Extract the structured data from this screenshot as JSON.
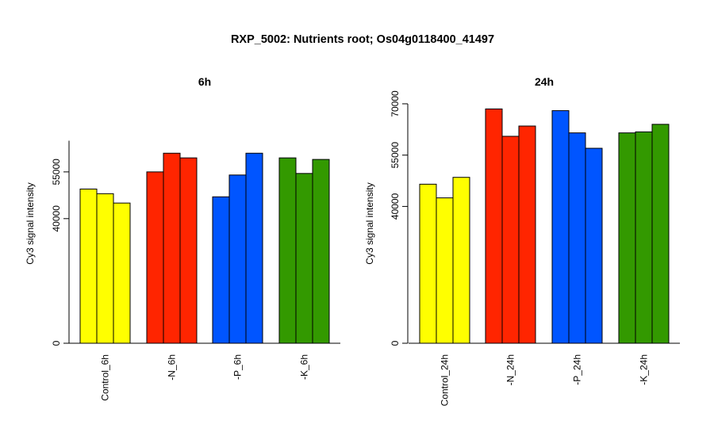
{
  "title": "RXP_5002: Nutrients root; Os04g0118400_41497",
  "colors": {
    "control": "#ffff00",
    "n": "#ff2500",
    "p": "#0055ff",
    "k": "#339900"
  },
  "chart_data": [
    {
      "type": "bar",
      "title": "6h",
      "ylabel": "Cy3 signal intensity",
      "xlabel": "",
      "ylim": [
        0,
        65000
      ],
      "yticks": [
        {
          "value": 0,
          "label": "0"
        },
        {
          "value": 40000,
          "label": "40000"
        },
        {
          "value": 55000,
          "label": "55000"
        }
      ],
      "grid": false,
      "categories": [
        "Control_6h",
        "-N_6h",
        "-P_6h",
        "-K_6h"
      ],
      "groups": [
        {
          "label": "Control_6h",
          "color": "#ffff00",
          "values": [
            49500,
            48000,
            45000
          ]
        },
        {
          "label": "-N_6h",
          "color": "#ff2500",
          "values": [
            55000,
            61000,
            59500
          ]
        },
        {
          "label": "-P_6h",
          "color": "#0055ff",
          "values": [
            47000,
            54000,
            61000
          ]
        },
        {
          "label": "-K_6h",
          "color": "#339900",
          "values": [
            59500,
            54500,
            59000
          ]
        }
      ]
    },
    {
      "type": "bar",
      "title": "24h",
      "ylabel": "Cy3 signal intensity",
      "xlabel": "",
      "ylim": [
        0,
        70000
      ],
      "yticks": [
        {
          "value": 0,
          "label": "0"
        },
        {
          "value": 40000,
          "label": "40000"
        },
        {
          "value": 55000,
          "label": "55000"
        },
        {
          "value": 70000,
          "label": "70000"
        }
      ],
      "grid": false,
      "categories": [
        "Control_24h",
        "-N_24h",
        "-P_24h",
        "-K_24h"
      ],
      "groups": [
        {
          "label": "Control_24h",
          "color": "#ffff00",
          "values": [
            46500,
            42500,
            48500
          ]
        },
        {
          "label": "-N_24h",
          "color": "#ff2500",
          "values": [
            68500,
            60500,
            63500
          ]
        },
        {
          "label": "-P_24h",
          "color": "#0055ff",
          "values": [
            68000,
            61500,
            57000
          ]
        },
        {
          "label": "-K_24h",
          "color": "#339900",
          "values": [
            61500,
            61800,
            64000
          ]
        }
      ]
    }
  ]
}
